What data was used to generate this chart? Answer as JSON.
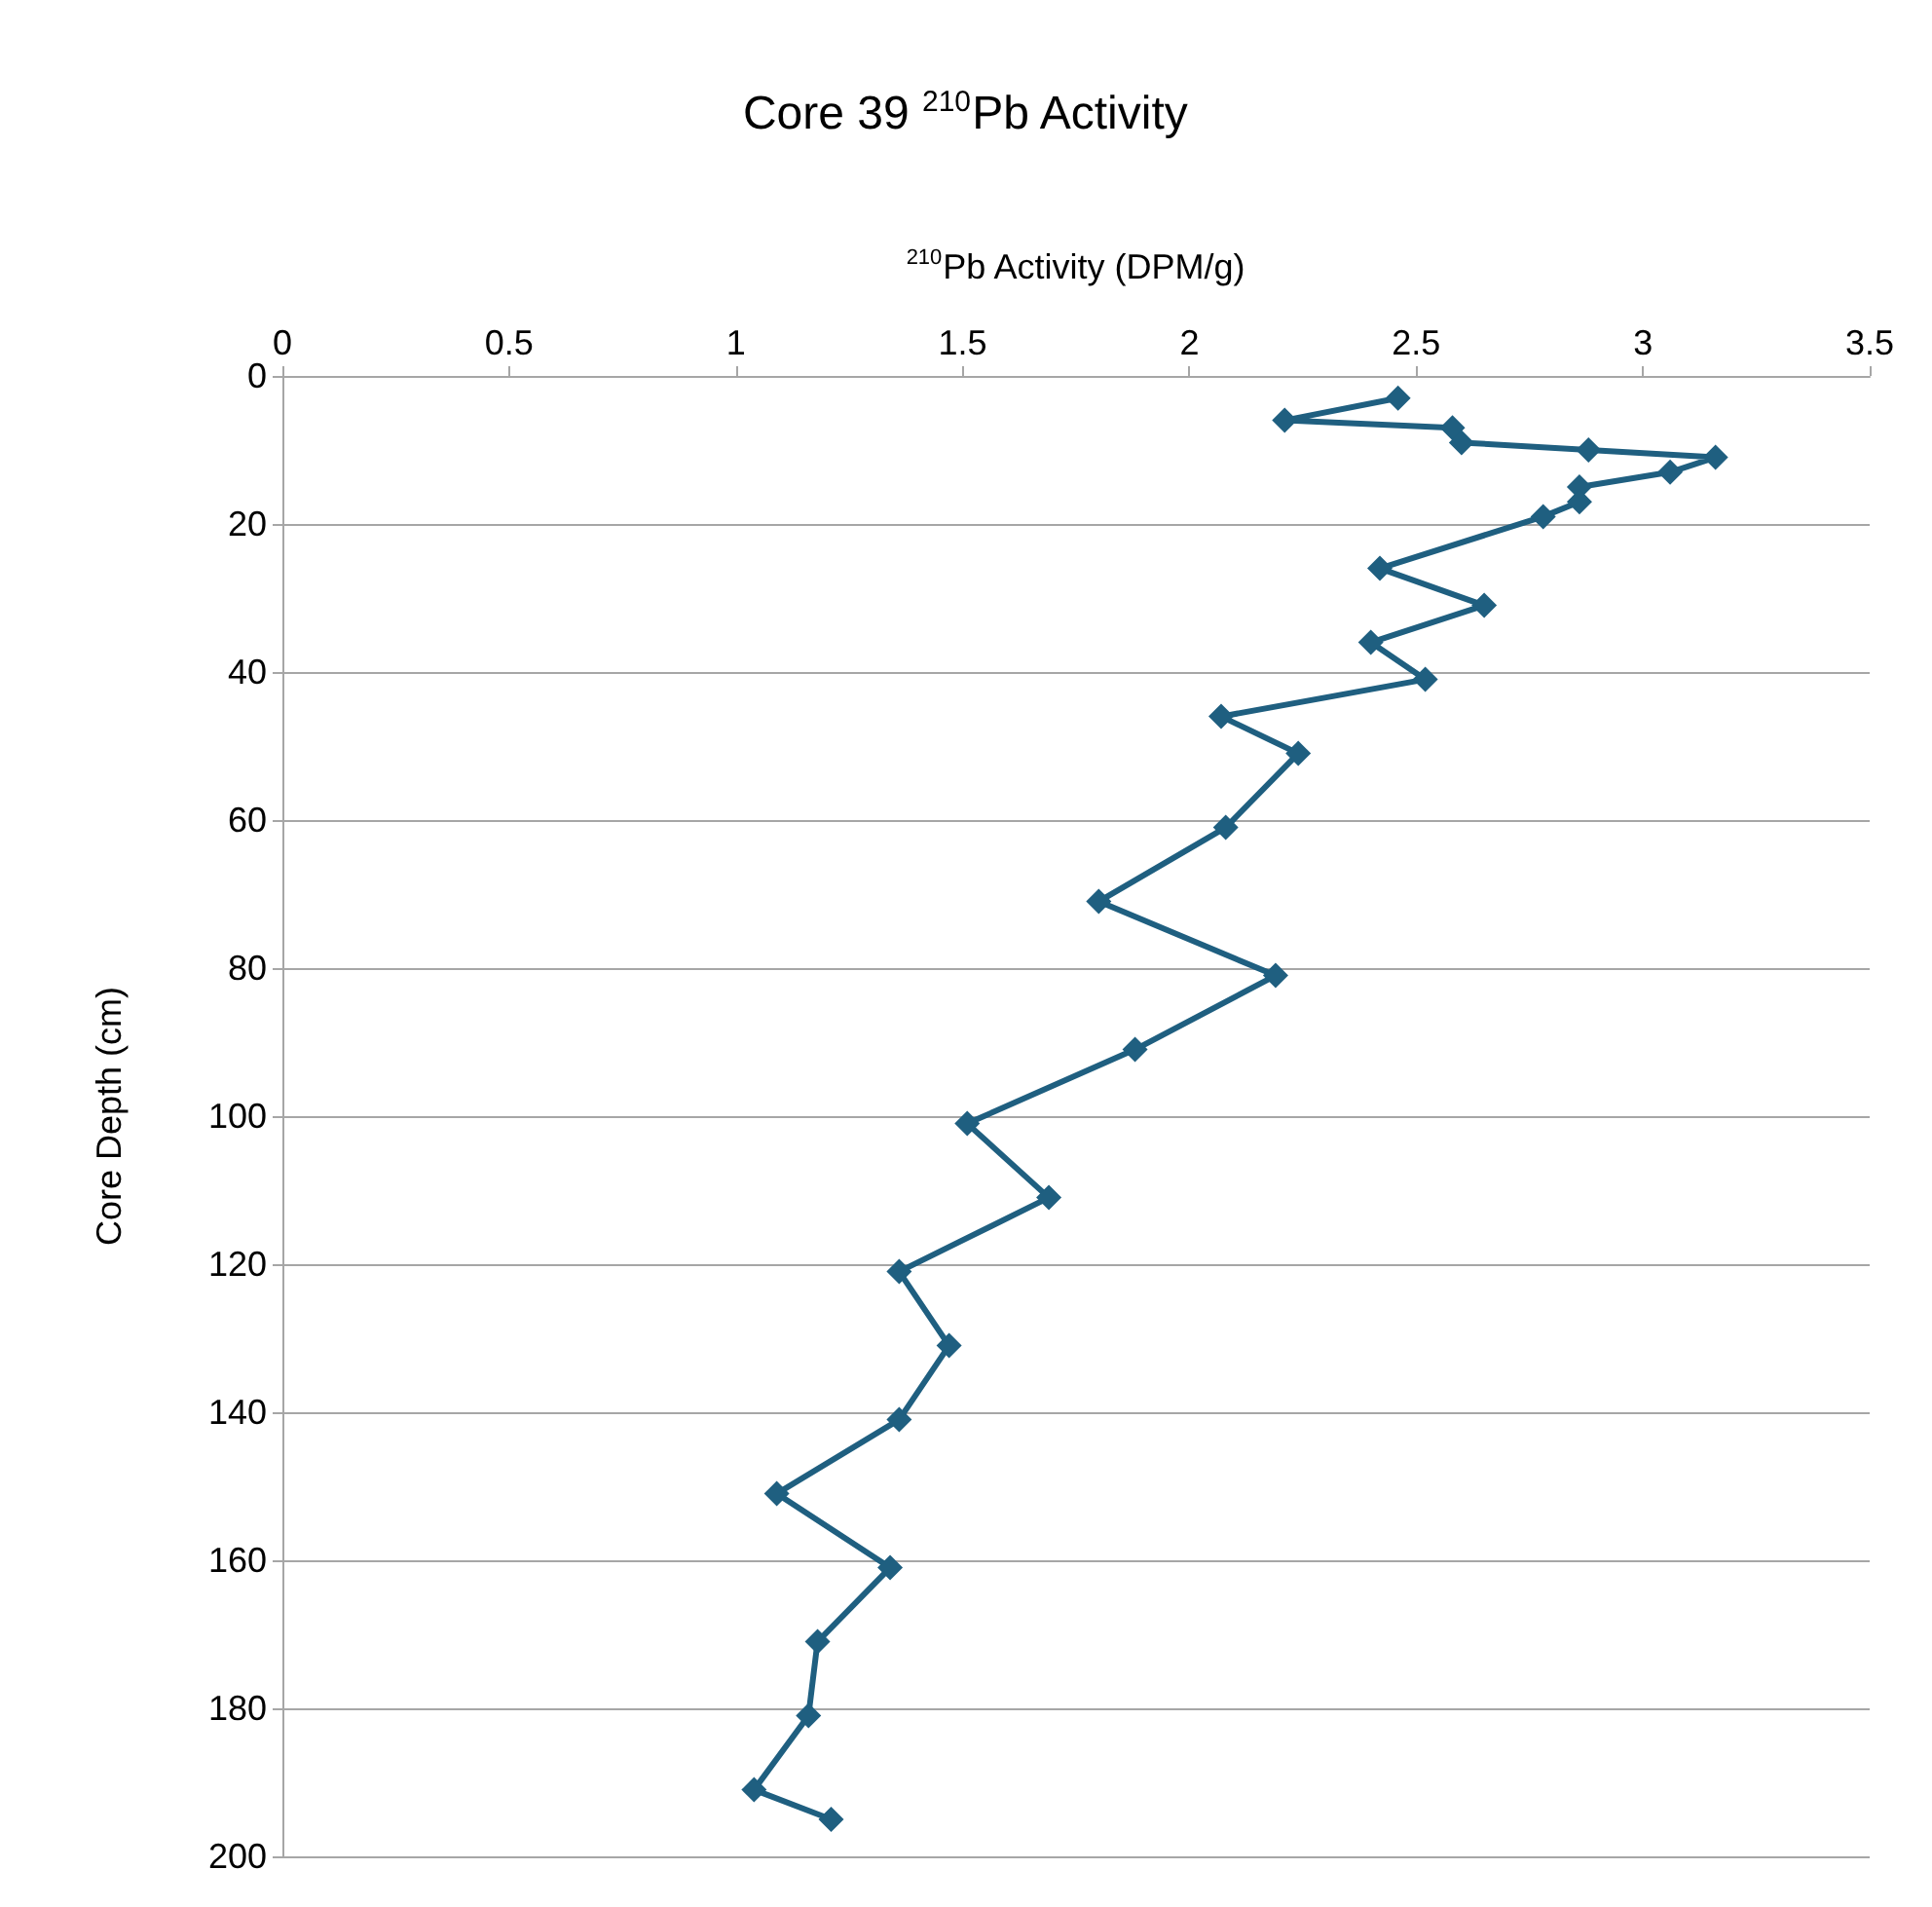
{
  "chart_data": {
    "type": "line",
    "title": "Core 39 $^{210}$Pb Activity",
    "xlabel": "$^{210}$Pb Activity (DPM/g)",
    "ylabel": "Core Depth (cm)",
    "series": [
      {
        "color": "#1f5f80",
        "x": [
          2.46,
          2.21,
          2.58,
          2.6,
          2.88,
          3.16,
          3.06,
          2.86,
          2.86,
          2.78,
          2.42,
          2.65,
          2.4,
          2.52,
          2.07,
          2.24,
          2.08,
          1.8,
          2.19,
          1.88,
          1.51,
          1.69,
          1.36,
          1.47,
          1.36,
          1.09,
          1.34,
          1.18,
          1.16,
          1.04,
          1.21
        ],
        "values": [
          3,
          6,
          7,
          9,
          10,
          11,
          13,
          15,
          17,
          19,
          26,
          31,
          36,
          41,
          46,
          51,
          61,
          71,
          81,
          91,
          101,
          111,
          121,
          131,
          141,
          151,
          161,
          171,
          181,
          191,
          195
        ]
      }
    ],
    "xlim": [
      0,
      3.5
    ],
    "xticks": [
      0,
      0.5,
      1,
      1.5,
      2,
      2.5,
      3,
      3.5
    ],
    "ylim": [
      200,
      0
    ],
    "yticks": [
      0,
      20,
      40,
      60,
      80,
      100,
      120,
      140,
      160,
      180,
      200
    ],
    "grid": "y",
    "marker": "diamond",
    "line_style": "solid"
  }
}
